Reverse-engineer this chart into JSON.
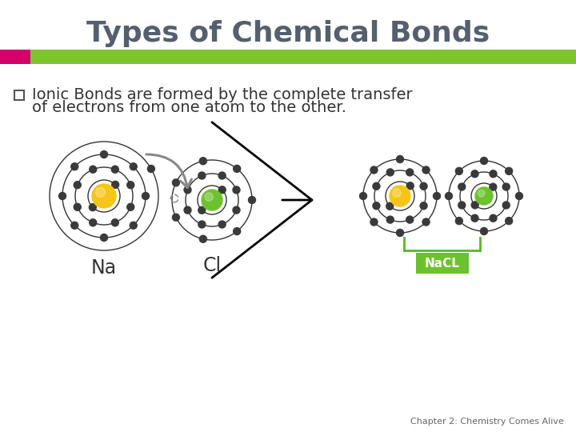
{
  "title": "Types of Chemical Bonds",
  "title_color": "#546070",
  "title_fontsize": 26,
  "green_bar_color": "#7dc52e",
  "pink_square_color": "#d4006a",
  "bullet_text_line1": "Ionic Bonds are formed by the complete transfer",
  "bullet_text_line2": "of electrons from one atom to the other.",
  "bullet_color": "#555555",
  "text_color": "#333333",
  "text_fontsize": 14,
  "na_label": "Na",
  "cl_label": "Cl",
  "nacl_label": "NaCL",
  "nacl_bg": "#6dc12e",
  "nacl_text_color": "#ffffff",
  "footer_text": "Chapter 2: Chemistry Comes Alive",
  "footer_color": "#666666",
  "footer_fontsize": 8,
  "background_color": "#ffffff",
  "na_nucleus_color": "#f5c518",
  "cl_nucleus_color": "#6dc12e",
  "electron_color": "#3a3a3a",
  "orbit_color": "#333333",
  "arrow_color": "#888888",
  "bracket_color": "#5ab52a",
  "na_radii": [
    20,
    36,
    52,
    68
  ],
  "na_electrons": [
    2,
    8,
    8,
    1
  ],
  "cl_radii": [
    18,
    33,
    50
  ],
  "cl_electrons": [
    2,
    8,
    7
  ],
  "na2_radii": [
    18,
    32,
    46
  ],
  "na2_electrons": [
    2,
    8,
    8
  ],
  "cl2_radii": [
    16,
    30,
    44
  ],
  "cl2_electrons": [
    2,
    8,
    8
  ]
}
